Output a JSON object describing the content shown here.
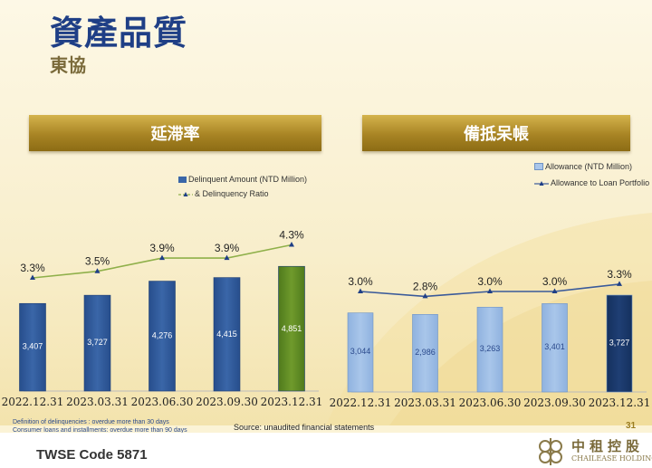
{
  "header": {
    "title": "資產品質",
    "subtitle": "東協"
  },
  "panels": {
    "left_title": "延滞率",
    "right_title": "備抵呆帳"
  },
  "chart_data": [
    {
      "type": "bar",
      "categories": [
        "2022.12.31",
        "2023.03.31",
        "2023.06.30",
        "2023.09.30",
        "2023.12.31"
      ],
      "series": [
        {
          "name": "Delinquent Amount (NTD Million)",
          "values": [
            3407,
            3727,
            4276,
            4415,
            4851
          ],
          "labels": [
            "3,407",
            "3,727",
            "4,276",
            "4,415",
            "4,851"
          ]
        },
        {
          "name": "& Delinquency Ratio",
          "type": "line",
          "values": [
            3.3,
            3.5,
            3.9,
            3.9,
            4.3
          ],
          "labels": [
            "3.3%",
            "3.5%",
            "3.9%",
            "3.9%",
            "4.3%"
          ]
        }
      ],
      "colors": {
        "bar": "#3a66a8",
        "bar_highlight": "#6f9a2c",
        "line": "#8fb04a"
      }
    },
    {
      "type": "bar",
      "categories": [
        "2022.12.31",
        "2023.03.31",
        "2023.06.30",
        "2023.09.30",
        "2023.12.31"
      ],
      "series": [
        {
          "name": "Allowance  (NTD Million)",
          "values": [
            3044,
            2986,
            3263,
            3401,
            3727
          ],
          "labels": [
            "3,044",
            "2,986",
            "3,263",
            "3,401",
            "3,727"
          ]
        },
        {
          "name": "Allowance to Loan Portfolio",
          "type": "line",
          "values": [
            3.0,
            2.8,
            3.0,
            3.0,
            3.3
          ],
          "labels": [
            "3.0%",
            "2.8%",
            "3.0%",
            "3.0%",
            "3.3%"
          ]
        }
      ],
      "colors": {
        "bar": "#a9c6ea",
        "bar_highlight": "#1f3f74",
        "line": "#3a5a9a"
      }
    }
  ],
  "footer": {
    "note_1": "Definition of delinquencies : overdue more than 30 days",
    "note_2": "Consumer loans and installments: overdue more than 90 days",
    "source": "Source: unaudited financial statements",
    "page_number": "31",
    "code": "TWSE Code 5871",
    "logo_cn": "中租控股",
    "logo_en": "CHAILEASE HOLDING"
  }
}
